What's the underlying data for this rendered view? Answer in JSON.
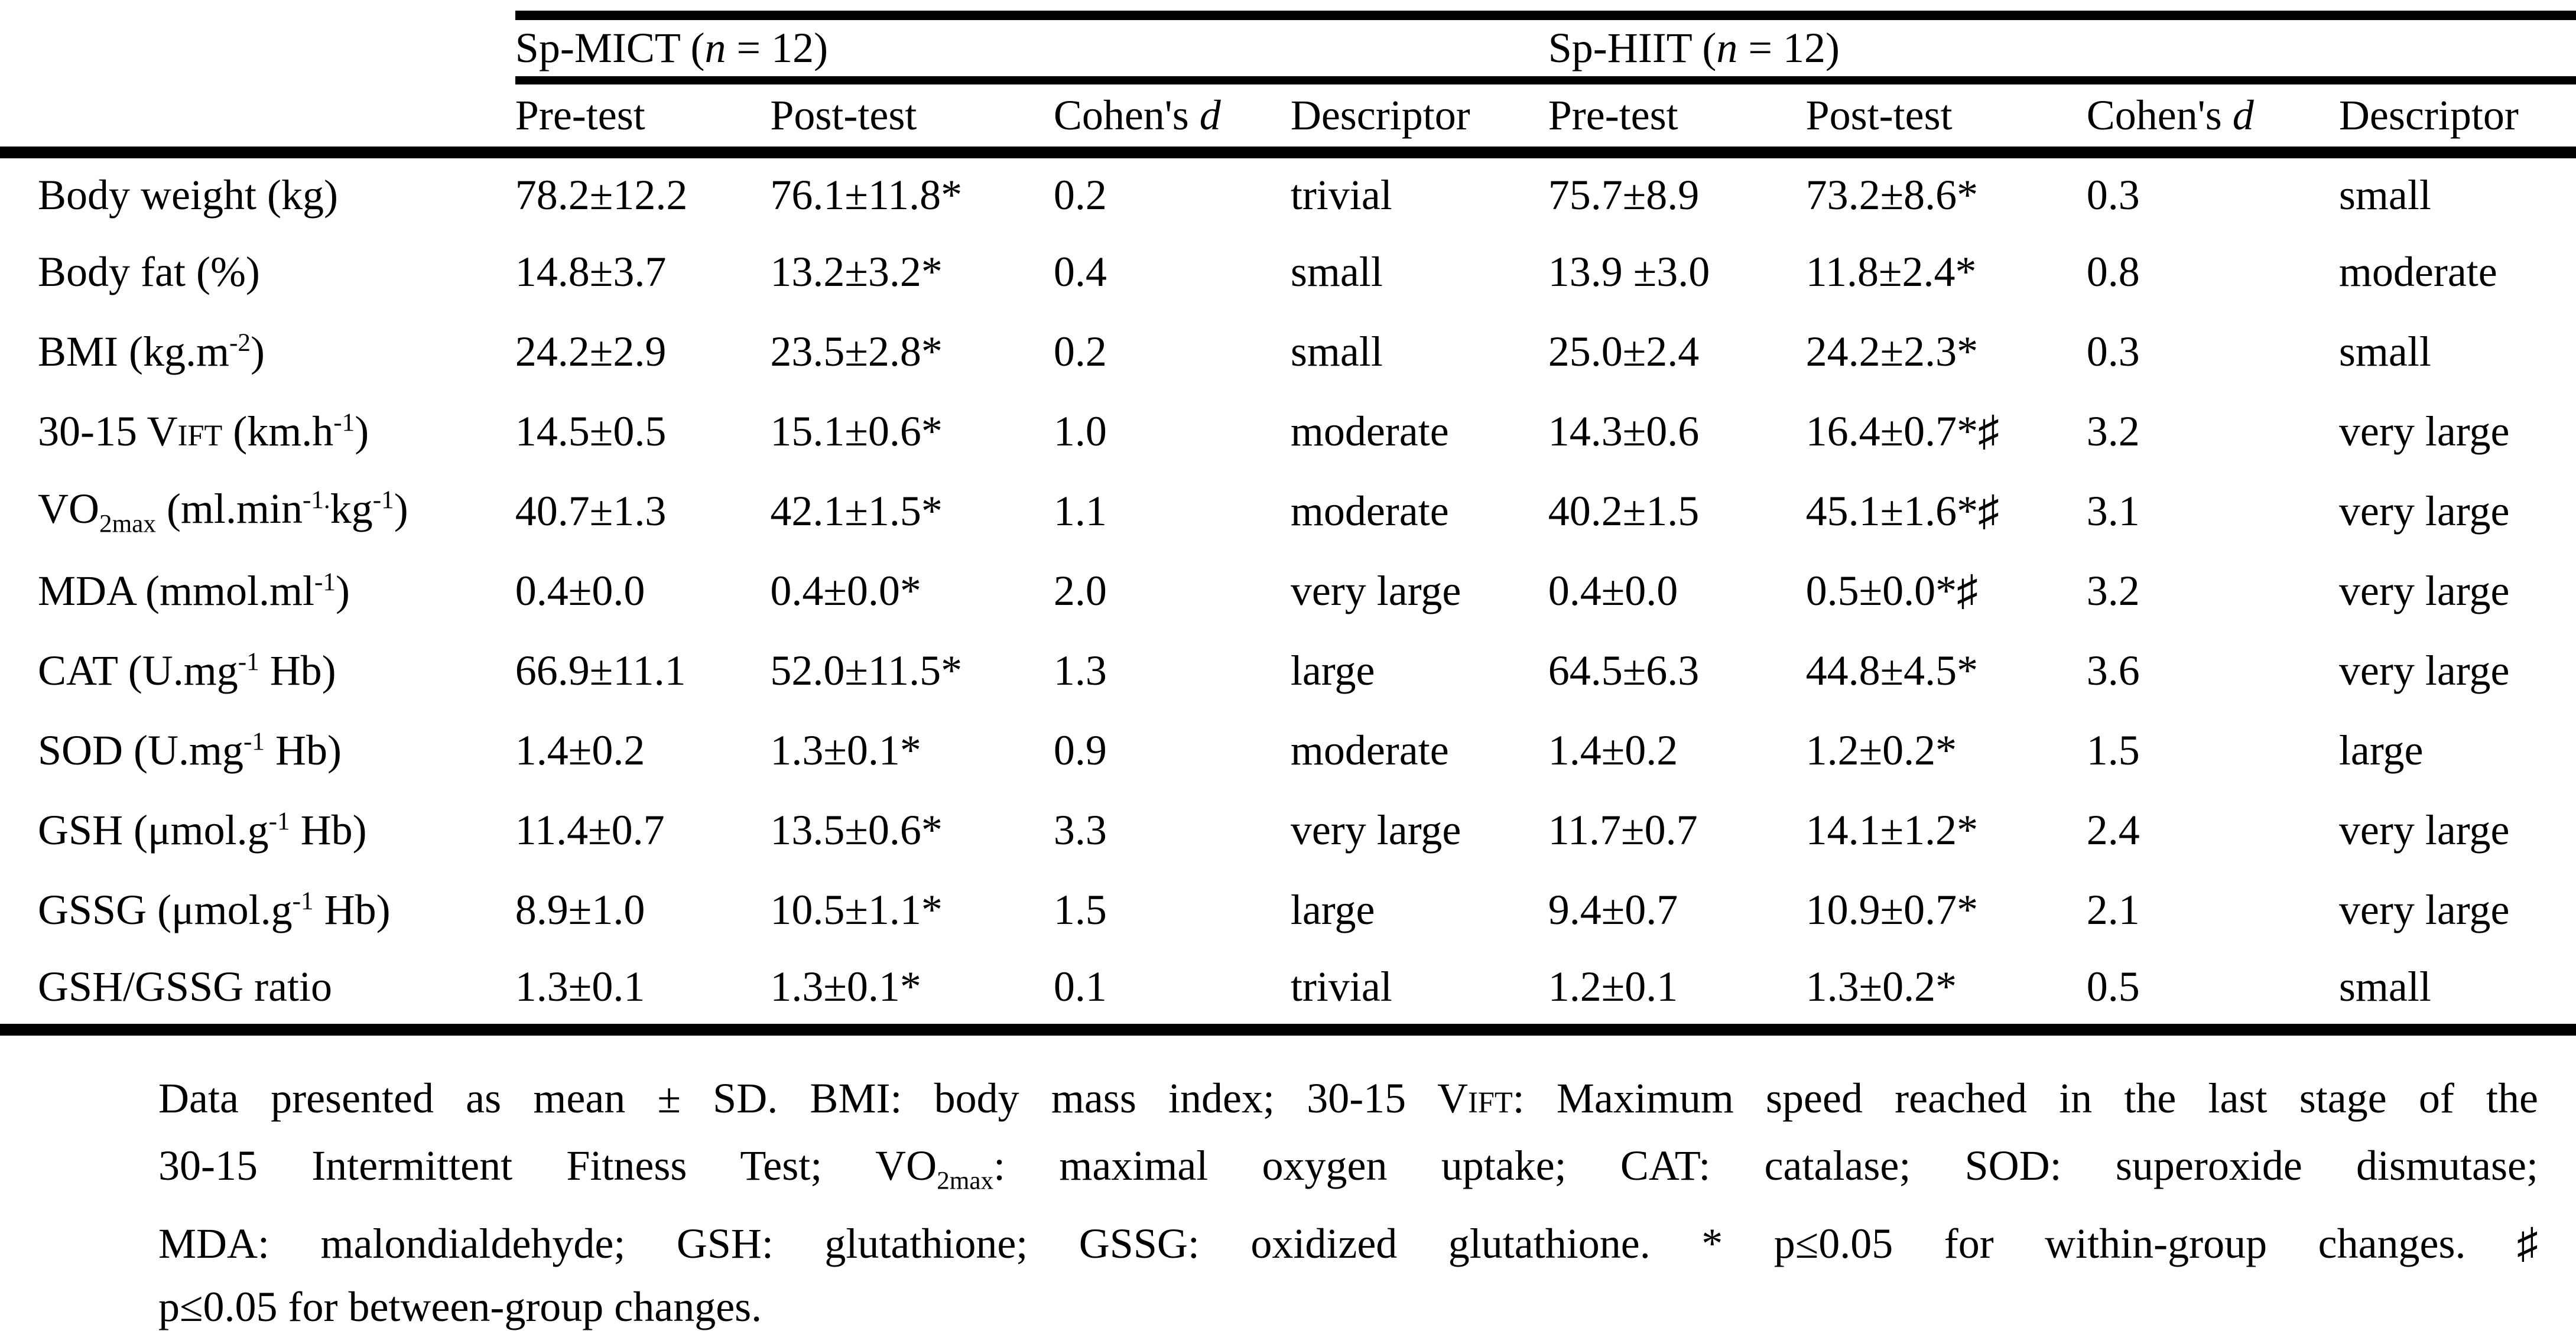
{
  "table": {
    "group_header": {
      "mict": "Sp-MICT (<i>n</i> = 12)",
      "hiit": "Sp-HIIT (<i>n</i> = 12)"
    },
    "column_headers": [
      "Pre-test",
      "Post-test",
      "Cohen's <i>d</i>",
      "Descriptor",
      "Pre-test",
      "Post-test",
      "Cohen's <i>d</i>",
      "Descriptor"
    ],
    "rows": [
      {
        "label": "Body weight (kg)",
        "cells": [
          "78.2±12.2",
          "76.1±11.8*",
          "0.2",
          "trivial",
          "75.7±8.9",
          "73.2±8.6*",
          "0.3",
          "small"
        ]
      },
      {
        "label": "Body fat (%)",
        "cells": [
          "14.8±3.7",
          "13.2±3.2*",
          "0.4",
          "small",
          "13.9 ±3.0",
          "11.8±2.4*",
          "0.8",
          "moderate"
        ]
      },
      {
        "label": "BMI (kg.m<sup>-2</sup>)",
        "cells": [
          "24.2±2.9",
          "23.5±2.8*",
          "0.2",
          "small",
          "25.0±2.4",
          "24.2±2.3*",
          "0.3",
          "small"
        ]
      },
      {
        "label": "30-15 V<span class='sc'>IFT</span> (km.h<sup>-1</sup>)",
        "cells": [
          "14.5±0.5",
          "15.1±0.6*",
          "1.0",
          "moderate",
          "14.3±0.6",
          "16.4±0.7*♯",
          "3.2",
          "very large"
        ]
      },
      {
        "label": "VO<sub>2max</sub> (ml.min<sup>-1.</sup>kg<sup>-1</sup>)",
        "cells": [
          "40.7±1.3",
          "42.1±1.5*",
          "1.1",
          "moderate",
          "40.2±1.5",
          "45.1±1.6*♯",
          "3.1",
          "very large"
        ]
      },
      {
        "label": "MDA (mmol.ml<sup>-1</sup>)",
        "cells": [
          "0.4±0.0",
          "0.4±0.0*",
          "2.0",
          "very large",
          "0.4±0.0",
          "0.5±0.0*♯",
          "3.2",
          "very large"
        ]
      },
      {
        "label": "CAT (U.mg<sup>-1</sup> Hb)",
        "cells": [
          "66.9±11.1",
          "52.0±11.5*",
          "1.3",
          "large",
          "64.5±6.3",
          "44.8±4.5*",
          "3.6",
          "very large"
        ]
      },
      {
        "label": "SOD (U.mg<sup>-1</sup> Hb)",
        "cells": [
          "1.4±0.2",
          "1.3±0.1*",
          "0.9",
          "moderate",
          "1.4±0.2",
          "1.2±0.2*",
          "1.5",
          "large"
        ]
      },
      {
        "label": "GSH (μmol.g<sup>-1</sup> Hb)",
        "cells": [
          "11.4±0.7",
          "13.5±0.6*",
          "3.3",
          "very large",
          "11.7±0.7",
          "14.1±1.2*",
          "2.4",
          "very large"
        ]
      },
      {
        "label": "GSSG (μmol.g<sup>-1</sup> Hb)",
        "cells": [
          "8.9±1.0",
          "10.5±1.1*",
          "1.5",
          "large",
          "9.4±0.7",
          "10.9±0.7*",
          "2.1",
          "very large"
        ]
      },
      {
        "label": "GSH/GSSG ratio",
        "cells": [
          "1.3±0.1",
          "1.3±0.1*",
          "0.1",
          "trivial",
          "1.2±0.1",
          "1.3±0.2*",
          "0.5",
          "small"
        ]
      }
    ]
  },
  "footnote": {
    "lines": [
      "Data presented as mean ± SD. BMI: body mass index; 30-15 V<span class='sc'>IFT</span>: Maximum speed reached in the last stage of the",
      "30-15 Intermittent Fitness Test; VO<sub>2max</sub>: maximal oxygen uptake; CAT: catalase; SOD: superoxide dismutase;",
      "MDA: malondialdehyde; GSH: glutathione; GSSG: oxidized glutathione. * p≤0.05 for within-group changes. ♯",
      "p≤0.05 for between-group changes."
    ]
  }
}
